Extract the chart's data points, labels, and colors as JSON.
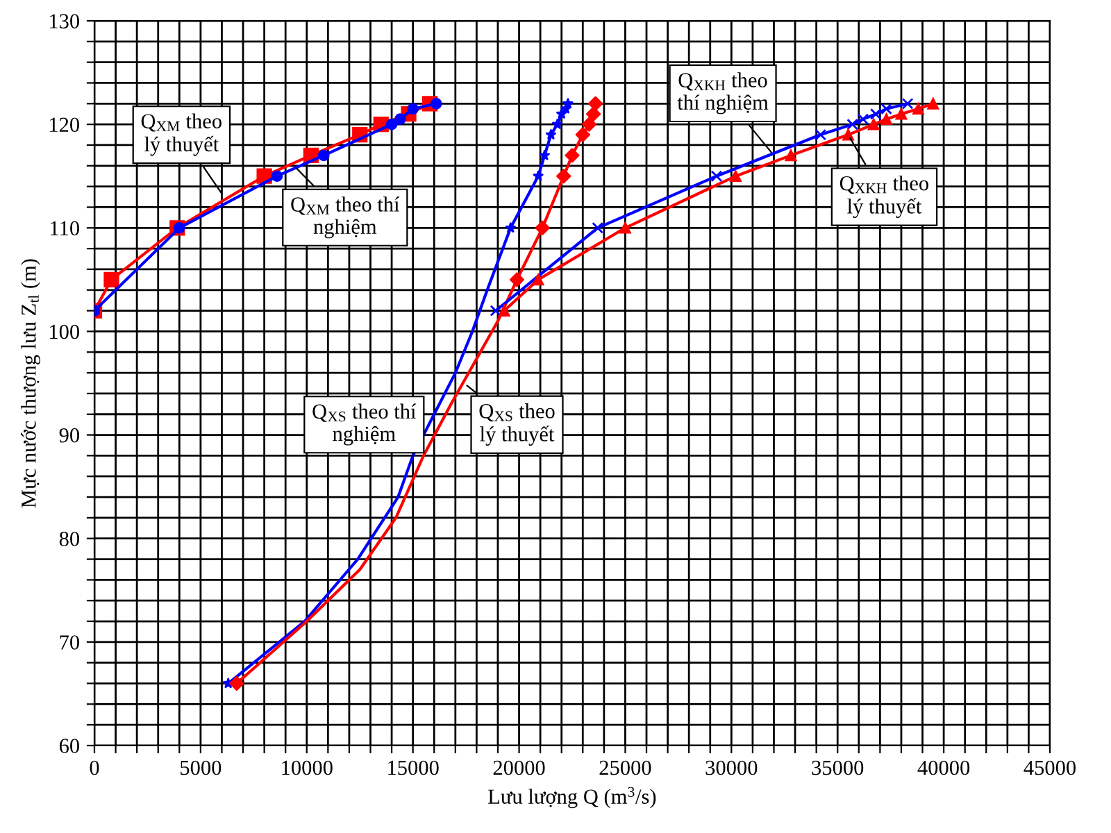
{
  "chart_data": {
    "type": "line",
    "xlabel": "Lưu lượng Q (m$^{3}$/s)",
    "ylabel": "Mực nước thượng lưu Z$_{tl}$ (m)",
    "xlim": [
      0,
      45000
    ],
    "ylim": [
      60,
      130
    ],
    "xticks": [
      0,
      {
        "value": 1000,
        "label": null
      },
      {
        "value": 2000,
        "label": null
      },
      {
        "value": 3000,
        "label": null
      },
      {
        "value": 4000,
        "label": null
      },
      5000,
      {
        "value": 6000,
        "label": null
      },
      {
        "value": 7000,
        "label": null
      },
      {
        "value": 8000,
        "label": null
      },
      {
        "value": 9000,
        "label": null
      },
      10000,
      {
        "value": 11000,
        "label": null
      },
      {
        "value": 12000,
        "label": null
      },
      {
        "value": 13000,
        "label": null
      },
      {
        "value": 14000,
        "label": null
      },
      15000,
      {
        "value": 16000,
        "label": null
      },
      {
        "value": 17000,
        "label": null
      },
      {
        "value": 18000,
        "label": null
      },
      {
        "value": 19000,
        "label": null
      },
      20000,
      {
        "value": 21000,
        "label": null
      },
      {
        "value": 22000,
        "label": null
      },
      {
        "value": 23000,
        "label": null
      },
      {
        "value": 24000,
        "label": null
      },
      25000,
      {
        "value": 26000,
        "label": null
      },
      {
        "value": 27000,
        "label": null
      },
      {
        "value": 28000,
        "label": null
      },
      {
        "value": 29000,
        "label": null
      },
      30000,
      {
        "value": 31000,
        "label": null
      },
      {
        "value": 32000,
        "label": null
      },
      {
        "value": 33000,
        "label": null
      },
      {
        "value": 34000,
        "label": null
      },
      35000,
      {
        "value": 36000,
        "label": null
      },
      {
        "value": 37000,
        "label": null
      },
      {
        "value": 38000,
        "label": null
      },
      {
        "value": 39000,
        "label": null
      },
      40000,
      {
        "value": 41000,
        "label": null
      },
      {
        "value": 42000,
        "label": null
      },
      {
        "value": 43000,
        "label": null
      },
      {
        "value": 44000,
        "label": null
      },
      45000
    ],
    "yticks": [
      60,
      {
        "value": 62,
        "label": null
      },
      {
        "value": 64,
        "label": null
      },
      {
        "value": 66,
        "label": null
      },
      {
        "value": 68,
        "label": null
      },
      70,
      {
        "value": 72,
        "label": null
      },
      {
        "value": 74,
        "label": null
      },
      {
        "value": 76,
        "label": null
      },
      {
        "value": 78,
        "label": null
      },
      80,
      {
        "value": 82,
        "label": null
      },
      {
        "value": 84,
        "label": null
      },
      {
        "value": 86,
        "label": null
      },
      {
        "value": 88,
        "label": null
      },
      90,
      {
        "value": 92,
        "label": null
      },
      {
        "value": 94,
        "label": null
      },
      {
        "value": 96,
        "label": null
      },
      {
        "value": 98,
        "label": null
      },
      100,
      {
        "value": 102,
        "label": null
      },
      {
        "value": 104,
        "label": null
      },
      {
        "value": 106,
        "label": null
      },
      {
        "value": 108,
        "label": null
      },
      110,
      {
        "value": 112,
        "label": null
      },
      {
        "value": 114,
        "label": null
      },
      {
        "value": 116,
        "label": null
      },
      {
        "value": 118,
        "label": null
      },
      120,
      {
        "value": 122,
        "label": null
      },
      {
        "value": 124,
        "label": null
      },
      {
        "value": 126,
        "label": null
      },
      {
        "value": 128,
        "label": null
      },
      130
    ],
    "grid": true,
    "series": [
      {
        "color": "#ff0000",
        "marker": "square",
        "x": [
          0,
          800,
          3900,
          8000,
          10200,
          12500,
          13500,
          14800,
          15800
        ],
        "values": [
          102,
          105,
          110,
          115,
          117,
          119,
          120,
          121,
          122
        ]
      },
      {
        "color": "#0000ff",
        "marker": "circle",
        "x": [
          0,
          4000,
          8600,
          10800,
          14000,
          14400,
          15000,
          16100
        ],
        "values": [
          102,
          110,
          115,
          117,
          120,
          120.5,
          121.5,
          122
        ]
      },
      {
        "color": "#0000ff",
        "marker": "none",
        "x": [
          6300,
          9900,
          12400,
          14300,
          15000,
          16000,
          17000,
          17800,
          18500,
          19600,
          20900,
          21200,
          21500,
          21800,
          22000,
          22200,
          22300
        ],
        "values": [
          66,
          72,
          78,
          84,
          88,
          92,
          96,
          100,
          104,
          110,
          115,
          117,
          119,
          120,
          121,
          121.5,
          122
        ]
      },
      {
        "type": "scatter",
        "color": "#0000ff",
        "marker": "star",
        "x": [
          6300,
          19600,
          20900,
          21200,
          21500,
          21800,
          22000,
          22200,
          22300
        ],
        "values": [
          66,
          110,
          115,
          117,
          119,
          120,
          121,
          121.5,
          122
        ]
      },
      {
        "color": "#ff0000",
        "marker": "none",
        "x": [
          6700,
          10000,
          12500,
          14200,
          15500,
          16800,
          17900,
          19000,
          19900,
          21100,
          22100,
          22500,
          23000,
          23300,
          23500,
          23600
        ],
        "values": [
          66,
          72,
          77,
          82,
          88,
          93,
          97,
          101,
          105,
          110,
          115,
          117,
          119,
          120,
          121,
          122
        ]
      },
      {
        "type": "scatter",
        "color": "#ff0000",
        "marker": "diamond",
        "x": [
          6700,
          19900,
          21100,
          22100,
          22500,
          23000,
          23300,
          23500,
          23600
        ],
        "values": [
          66,
          105,
          110,
          115,
          117,
          119,
          120,
          121,
          122
        ]
      },
      {
        "color": "#0000ff",
        "marker": "cross",
        "x": [
          18900,
          23700,
          29300,
          34200,
          35700,
          36200,
          36800,
          37300,
          38300
        ],
        "values": [
          102,
          110,
          115,
          119,
          120,
          120.5,
          121,
          121.5,
          122
        ]
      },
      {
        "color": "#ff0000",
        "marker": "triangle",
        "x": [
          19300,
          20900,
          25000,
          30200,
          32800,
          35500,
          36700,
          37300,
          38000,
          38800,
          39500
        ],
        "values": [
          102,
          105,
          110,
          115,
          117,
          119,
          120,
          120.5,
          121,
          121.5,
          122
        ]
      }
    ],
    "annotations": [
      {
        "text": "Q$_{XM}$ theo\nlý thuyết",
        "x": 6100,
        "y": 113
      },
      {
        "text": "Q$_{XM}$ theo thí\nnghiệm",
        "x": 9400,
        "y": 116
      },
      {
        "text": "Q$_{XS}$ theo thí\nnghiệm",
        "x": 15000,
        "y": 88
      },
      {
        "text": "Q$_{XS}$ theo\nlý thuyết",
        "x": 17400,
        "y": 95
      },
      {
        "text": "Q$_{XKH}$ theo\nthí nghiệm",
        "x": 32000,
        "y": 117
      },
      {
        "text": "Q$_{XKH}$ theo\nlý thuyết",
        "x": 35500,
        "y": 119
      }
    ]
  }
}
